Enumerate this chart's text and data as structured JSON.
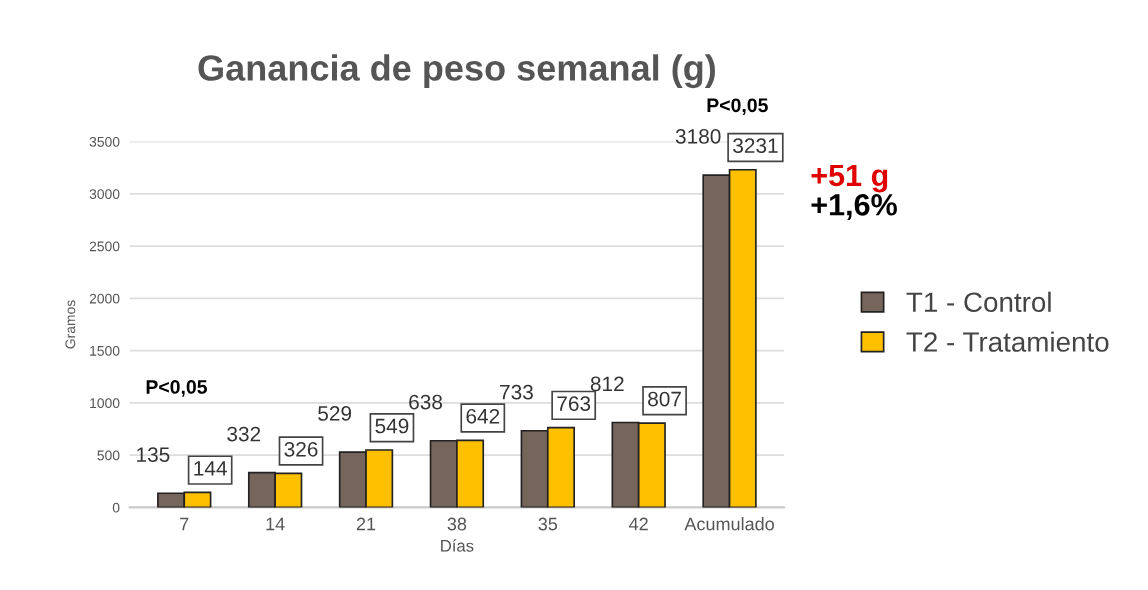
{
  "chart_data": {
    "type": "bar",
    "title": "Ganancia de peso semanal (g)",
    "xlabel": "Días",
    "ylabel": "Gramos",
    "categories": [
      "7",
      "14",
      "21",
      "38",
      "35",
      "42",
      "Acumulado"
    ],
    "series": [
      {
        "name": "T1 - Control",
        "color": "#76655a",
        "values": [
          135,
          332,
          529,
          638,
          733,
          812,
          3180
        ]
      },
      {
        "name": "T2 - Tratamiento",
        "color": "#ffc000",
        "values": [
          144,
          326,
          549,
          642,
          763,
          807,
          3231
        ]
      }
    ],
    "ylim": [
      0,
      3500
    ],
    "yticks": [
      0,
      500,
      1000,
      1500,
      2000,
      2500,
      3000,
      3500
    ],
    "grid": "y",
    "legend": "right",
    "data_labels": true,
    "annotations": [
      "P<0,05",
      "P<0,05",
      "+51 g",
      "+1,6%"
    ]
  }
}
